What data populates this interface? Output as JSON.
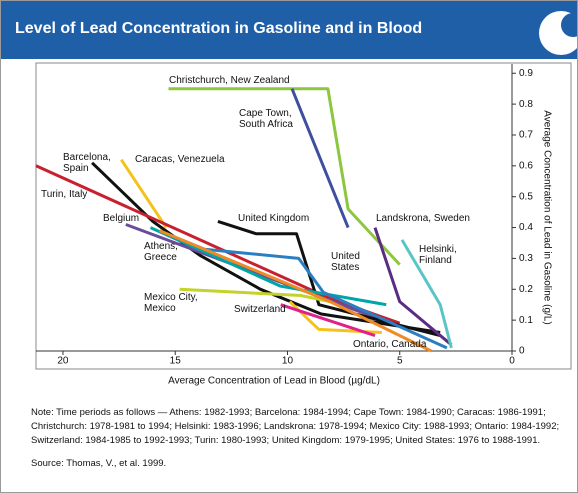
{
  "chart_data": {
    "type": "line",
    "title": "Level of Lead Concentration in Gasoline and in Blood",
    "x_label": "Average Concentration of Lead in Blood (µg/dL)",
    "y_label": "Average Concentration of Lead in Gasoline (g/L)",
    "xlim": [
      21.2,
      0
    ],
    "xticks": [
      20,
      15,
      10,
      5,
      0
    ],
    "ylim": [
      0,
      0.93
    ],
    "yticks": [
      0,
      0.1,
      0.2,
      0.3,
      0.4,
      0.5,
      0.6,
      0.7,
      0.8,
      0.9
    ],
    "series": [
      {
        "name": "Christchurch, New Zealand",
        "color": "#8dc63f",
        "x": [
          15.3,
          8.2,
          7.3,
          5.0
        ],
        "values": [
          0.85,
          0.85,
          0.46,
          0.28
        ]
      },
      {
        "name": "Cape Town, South Africa",
        "color": "#3f4fa0",
        "x": [
          9.8,
          7.3
        ],
        "values": [
          0.85,
          0.4
        ]
      },
      {
        "name": "Barcelona, Spain",
        "color": "#111111",
        "x": [
          18.7,
          16.0,
          13.9,
          11.2,
          8.5,
          3.2
        ],
        "values": [
          0.61,
          0.42,
          0.31,
          0.2,
          0.12,
          0.06
        ]
      },
      {
        "name": "Caracas, Venezuela",
        "color": "#f5c21b",
        "x": [
          17.4,
          15.4,
          null,
          9.9,
          8.9,
          8.6,
          5.8
        ],
        "values": [
          0.62,
          0.4,
          null,
          0.16,
          0.09,
          0.07,
          0.06
        ]
      },
      {
        "name": "Turin, Italy",
        "color": "#c8202f",
        "x": [
          21.2,
          8.1,
          5.0
        ],
        "values": [
          0.6,
          0.17,
          0.09
        ]
      },
      {
        "name": "Belgium",
        "color": "#6b4c9a",
        "x": [
          17.2,
          5.4
        ],
        "values": [
          0.41,
          0.09
        ]
      },
      {
        "name": "United Kingdom",
        "color": "#111111",
        "x": [
          13.1,
          11.4,
          9.6,
          8.6,
          3.2
        ],
        "values": [
          0.42,
          0.38,
          0.38,
          0.15,
          0.05
        ]
      },
      {
        "name": "Athens, Greece",
        "color": "#00a5a8",
        "x": [
          16.1,
          10.3,
          5.6
        ],
        "values": [
          0.4,
          0.21,
          0.15
        ]
      },
      {
        "name": "United States",
        "color": "#2a7fc1",
        "x": [
          15.4,
          13.7,
          9.5,
          8.4,
          2.9
        ],
        "values": [
          0.38,
          0.33,
          0.3,
          0.19,
          0.01
        ]
      },
      {
        "name": "Landskrona, Sweden",
        "color": "#5b2c83",
        "x": [
          6.1,
          5.0,
          2.7
        ],
        "values": [
          0.4,
          0.16,
          0.02
        ]
      },
      {
        "name": "Helsinki, Finland",
        "color": "#59c5c7",
        "x": [
          4.9,
          3.2,
          2.7
        ],
        "values": [
          0.36,
          0.15,
          0.01
        ]
      },
      {
        "name": "Mexico City, Mexico",
        "color": "#c4d32a",
        "x": [
          14.8,
          9.4,
          8.1
        ],
        "values": [
          0.2,
          0.18,
          0.16
        ]
      },
      {
        "name": "Switzerland",
        "color": "#e0218a",
        "x": [
          10.3,
          6.1
        ],
        "values": [
          0.15,
          0.05
        ]
      },
      {
        "name": "Ontario, Canada",
        "color": "#f08a24",
        "x": [
          15.7,
          8.1,
          3.6
        ],
        "values": [
          0.39,
          0.16,
          0.0
        ]
      }
    ]
  },
  "note": "Note:  Time periods as follows — Athens: 1982-1993; Barcelona: 1984-1994; Cape Town: 1984-1990; Caracas: 1986-1991; Christchurch: 1978-1981 to 1994; Helsinki: 1983-1996; Landskrona: 1978-1994; Mexico City: 1988-1993; Ontario: 1984-1992; Switzerland: 1984-1985 to 1992-1993; Turin: 1980-1993; United Kingdom: 1979-1995; United States: 1976 to 1988-1991.",
  "source": "Source: Thomas, V., et al. 1999."
}
